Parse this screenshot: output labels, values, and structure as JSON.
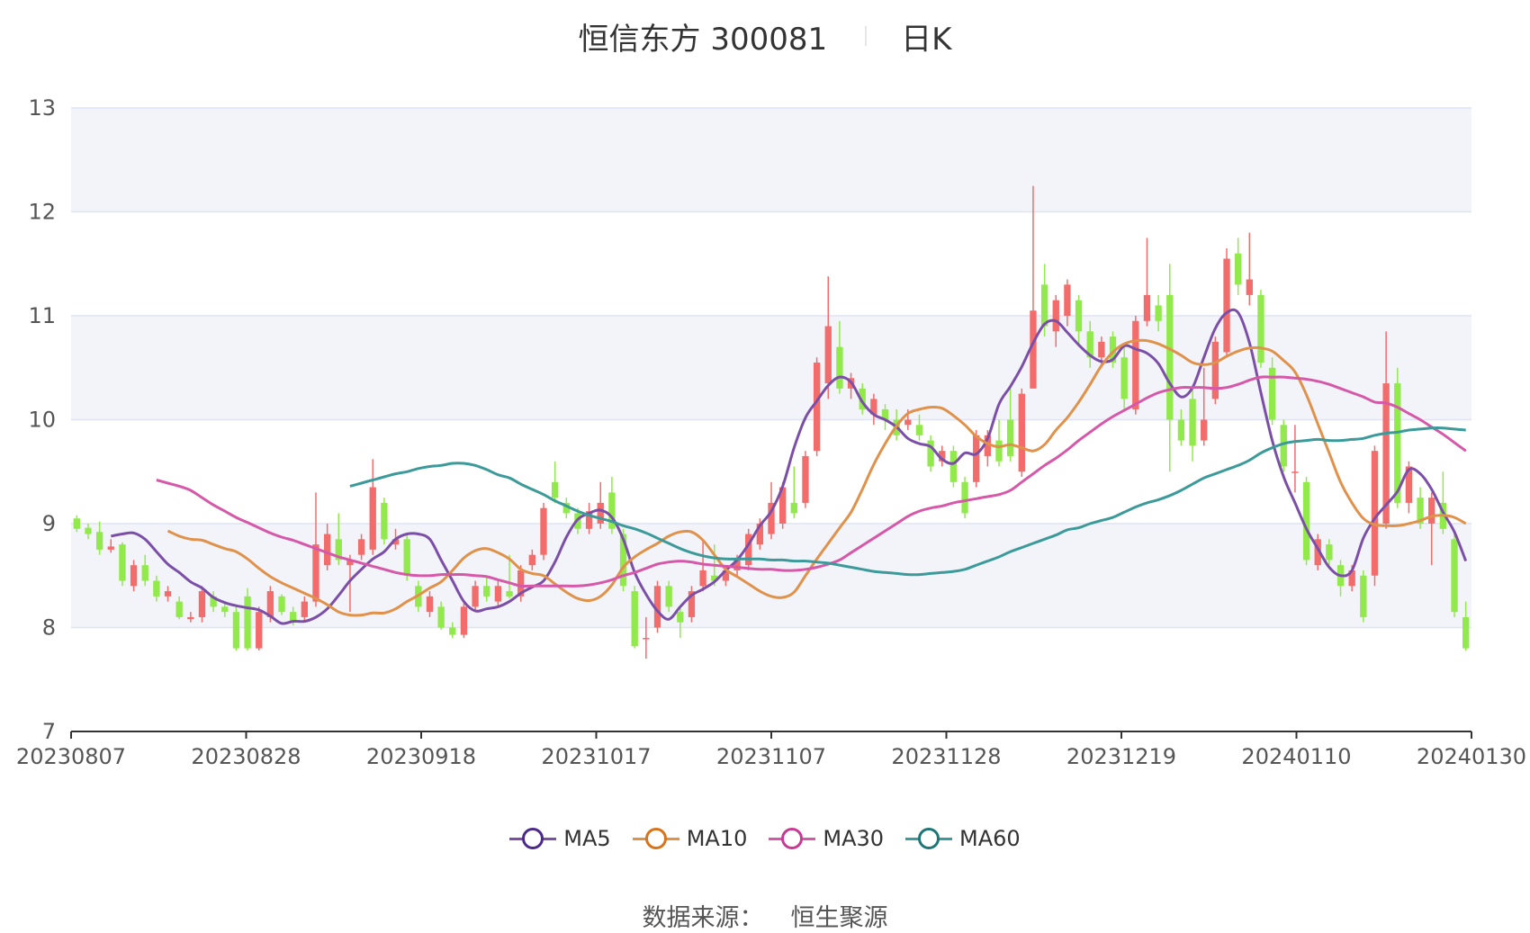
{
  "header": {
    "title": "恒信东方 300081",
    "period": "日K"
  },
  "source": {
    "label": "数据来源：",
    "value": "恒生聚源"
  },
  "chart_data": {
    "type": "candlestick",
    "title": "恒信东方 300081",
    "ylim": [
      7,
      13
    ],
    "yticks": [
      7,
      8,
      9,
      10,
      11,
      12,
      13
    ],
    "x_tick_labels": [
      "20230807",
      "20230828",
      "20230918",
      "20231017",
      "20231107",
      "20231128",
      "20231219",
      "20240110",
      "20240130"
    ],
    "grid": true,
    "legend_position": "bottom",
    "colors": {
      "up": "#f26c6c",
      "down": "#91e94c",
      "grid": "#dfe3f3",
      "band": "#f3f4fa"
    },
    "candles": [
      [
        9.05,
        8.95,
        9.08,
        8.92
      ],
      [
        8.96,
        8.9,
        9.0,
        8.85
      ],
      [
        8.92,
        8.75,
        9.02,
        8.7
      ],
      [
        8.75,
        8.78,
        8.85,
        8.72
      ],
      [
        8.8,
        8.45,
        8.82,
        8.4
      ],
      [
        8.4,
        8.6,
        8.65,
        8.35
      ],
      [
        8.6,
        8.45,
        8.7,
        8.4
      ],
      [
        8.45,
        8.3,
        8.5,
        8.25
      ],
      [
        8.3,
        8.35,
        8.4,
        8.25
      ],
      [
        8.25,
        8.1,
        8.3,
        8.08
      ],
      [
        8.08,
        8.1,
        8.15,
        8.05
      ],
      [
        8.1,
        8.35,
        8.4,
        8.05
      ],
      [
        8.3,
        8.2,
        8.35,
        8.15
      ],
      [
        8.2,
        8.15,
        8.25,
        8.1
      ],
      [
        8.15,
        7.8,
        8.2,
        7.78
      ],
      [
        8.3,
        7.8,
        8.38,
        7.78
      ],
      [
        7.8,
        8.15,
        8.2,
        7.78
      ],
      [
        8.1,
        8.35,
        8.4,
        8.05
      ],
      [
        8.3,
        8.15,
        8.32,
        8.12
      ],
      [
        8.15,
        8.05,
        8.2,
        8.02
      ],
      [
        8.1,
        8.25,
        8.3,
        8.05
      ],
      [
        8.25,
        8.8,
        9.3,
        8.2
      ],
      [
        8.6,
        8.9,
        9.0,
        8.55
      ],
      [
        8.85,
        8.65,
        9.1,
        8.6
      ],
      [
        8.6,
        8.65,
        8.7,
        8.15
      ],
      [
        8.7,
        8.85,
        8.9,
        8.65
      ],
      [
        8.75,
        9.35,
        9.62,
        8.7
      ],
      [
        9.2,
        8.85,
        9.25,
        8.8
      ],
      [
        8.8,
        8.85,
        8.95,
        8.75
      ],
      [
        8.85,
        8.5,
        8.9,
        8.45
      ],
      [
        8.4,
        8.2,
        8.45,
        8.15
      ],
      [
        8.15,
        8.3,
        8.35,
        8.1
      ],
      [
        8.2,
        8.0,
        8.25,
        7.98
      ],
      [
        8.0,
        7.93,
        8.05,
        7.9
      ],
      [
        7.93,
        8.2,
        8.25,
        7.9
      ],
      [
        8.2,
        8.4,
        8.45,
        8.15
      ],
      [
        8.4,
        8.3,
        8.5,
        8.25
      ],
      [
        8.25,
        8.4,
        8.45,
        8.2
      ],
      [
        8.35,
        8.3,
        8.7,
        8.28
      ],
      [
        8.3,
        8.55,
        8.6,
        8.25
      ],
      [
        8.6,
        8.7,
        8.75,
        8.55
      ],
      [
        8.7,
        9.15,
        9.2,
        8.65
      ],
      [
        9.4,
        9.25,
        9.6,
        9.2
      ],
      [
        9.2,
        9.1,
        9.25,
        9.05
      ],
      [
        9.1,
        8.95,
        9.15,
        8.9
      ],
      [
        8.95,
        9.12,
        9.2,
        8.9
      ],
      [
        9.0,
        9.2,
        9.4,
        8.95
      ],
      [
        9.3,
        8.95,
        9.45,
        8.9
      ],
      [
        8.9,
        8.4,
        8.95,
        8.35
      ],
      [
        8.35,
        7.82,
        8.4,
        7.8
      ],
      [
        7.9,
        7.9,
        8.1,
        7.7
      ],
      [
        8.0,
        8.4,
        8.45,
        7.95
      ],
      [
        8.4,
        8.2,
        8.45,
        8.15
      ],
      [
        8.15,
        8.05,
        8.2,
        7.9
      ],
      [
        8.1,
        8.35,
        8.4,
        8.05
      ],
      [
        8.4,
        8.55,
        8.85,
        8.35
      ],
      [
        8.5,
        8.45,
        8.8,
        8.4
      ],
      [
        8.45,
        8.55,
        8.6,
        8.4
      ],
      [
        8.55,
        8.65,
        8.7,
        8.5
      ],
      [
        8.6,
        8.9,
        8.95,
        8.55
      ],
      [
        8.8,
        9.0,
        9.05,
        8.75
      ],
      [
        8.9,
        9.2,
        9.4,
        8.85
      ],
      [
        9.0,
        9.35,
        9.4,
        8.95
      ],
      [
        9.2,
        9.1,
        9.55,
        9.05
      ],
      [
        9.2,
        9.65,
        9.7,
        9.15
      ],
      [
        9.7,
        10.55,
        10.6,
        9.65
      ],
      [
        10.35,
        10.9,
        11.38,
        10.2
      ],
      [
        10.7,
        10.3,
        10.95,
        10.25
      ],
      [
        10.3,
        10.4,
        10.45,
        10.2
      ],
      [
        10.3,
        10.1,
        10.35,
        10.05
      ],
      [
        10.05,
        10.2,
        10.25,
        9.95
      ],
      [
        10.1,
        10.0,
        10.15,
        9.9
      ],
      [
        10.0,
        9.85,
        10.1,
        9.8
      ],
      [
        9.95,
        10.0,
        10.1,
        9.9
      ],
      [
        9.95,
        9.85,
        10.05,
        9.8
      ],
      [
        9.8,
        9.55,
        9.85,
        9.5
      ],
      [
        9.6,
        9.7,
        9.75,
        9.55
      ],
      [
        9.7,
        9.4,
        9.75,
        9.35
      ],
      [
        9.4,
        9.1,
        9.45,
        9.05
      ],
      [
        9.4,
        9.85,
        9.9,
        9.35
      ],
      [
        9.65,
        9.85,
        9.9,
        9.55
      ],
      [
        9.8,
        9.6,
        10.0,
        9.55
      ],
      [
        10.0,
        9.65,
        10.3,
        9.6
      ],
      [
        9.5,
        10.25,
        10.3,
        9.45
      ],
      [
        10.3,
        11.05,
        12.25,
        10.3
      ],
      [
        11.3,
        10.9,
        11.5,
        10.8
      ],
      [
        10.85,
        11.15,
        11.2,
        10.7
      ],
      [
        11.0,
        11.3,
        11.35,
        10.9
      ],
      [
        11.15,
        10.85,
        11.2,
        10.7
      ],
      [
        10.85,
        10.6,
        10.95,
        10.5
      ],
      [
        10.6,
        10.75,
        10.8,
        10.5
      ],
      [
        10.8,
        10.55,
        10.85,
        10.5
      ],
      [
        10.6,
        10.2,
        10.7,
        10.1
      ],
      [
        10.1,
        10.95,
        11.0,
        10.05
      ],
      [
        10.95,
        11.2,
        11.75,
        10.9
      ],
      [
        11.1,
        10.95,
        11.2,
        10.85
      ],
      [
        11.2,
        10.0,
        11.5,
        9.5
      ],
      [
        10.0,
        9.8,
        10.1,
        9.75
      ],
      [
        10.2,
        9.75,
        10.3,
        9.6
      ],
      [
        9.8,
        10.0,
        10.5,
        9.75
      ],
      [
        10.2,
        10.75,
        10.8,
        10.15
      ],
      [
        10.65,
        11.55,
        11.65,
        10.6
      ],
      [
        11.6,
        11.3,
        11.75,
        11.2
      ],
      [
        11.2,
        11.35,
        11.8,
        11.1
      ],
      [
        11.2,
        10.55,
        11.25,
        10.5
      ],
      [
        10.5,
        10.0,
        10.6,
        9.95
      ],
      [
        9.95,
        9.55,
        10.0,
        9.5
      ],
      [
        9.5,
        9.5,
        9.95,
        9.3
      ],
      [
        9.4,
        8.65,
        9.45,
        8.6
      ],
      [
        8.6,
        8.85,
        8.9,
        8.55
      ],
      [
        8.8,
        8.65,
        8.85,
        8.6
      ],
      [
        8.6,
        8.4,
        8.65,
        8.3
      ],
      [
        8.4,
        8.55,
        8.6,
        8.35
      ],
      [
        8.5,
        8.1,
        8.55,
        8.05
      ],
      [
        8.5,
        9.7,
        9.75,
        8.4
      ],
      [
        9.0,
        10.35,
        10.85,
        8.95
      ],
      [
        10.35,
        9.2,
        10.5,
        9.15
      ],
      [
        9.2,
        9.55,
        9.6,
        9.1
      ],
      [
        9.25,
        9.0,
        9.35,
        8.95
      ],
      [
        9.0,
        9.25,
        9.3,
        8.6
      ],
      [
        9.2,
        8.95,
        9.5,
        8.9
      ],
      [
        8.85,
        8.15,
        8.9,
        8.1
      ],
      [
        8.1,
        7.8,
        8.25,
        7.78
      ]
    ],
    "series": [
      {
        "name": "MA5",
        "color": "#7b4fa8",
        "values": [
          8.88,
          8.9,
          8.91,
          8.85,
          8.73,
          8.61,
          8.53,
          8.44,
          8.38,
          8.29,
          8.24,
          8.21,
          8.19,
          8.17,
          8.11,
          8.04,
          8.06,
          8.06,
          8.1,
          8.18,
          8.31,
          8.45,
          8.56,
          8.66,
          8.73,
          8.85,
          8.9,
          8.9,
          8.85,
          8.65,
          8.45,
          8.25,
          8.16,
          8.18,
          8.2,
          8.25,
          8.33,
          8.39,
          8.45,
          8.63,
          8.87,
          9.04,
          9.1,
          9.13,
          9.06,
          8.85,
          8.53,
          8.32,
          8.16,
          8.08,
          8.2,
          8.31,
          8.37,
          8.44,
          8.55,
          8.65,
          8.8,
          8.98,
          9.12,
          9.36,
          9.73,
          10.02,
          10.18,
          10.33,
          10.41,
          10.36,
          10.17,
          10.05,
          10.0,
          9.93,
          9.82,
          9.77,
          9.74,
          9.62,
          9.58,
          9.68,
          9.67,
          9.82,
          10.15,
          10.32,
          10.51,
          10.74,
          10.92,
          10.95,
          10.84,
          10.72,
          10.62,
          10.56,
          10.58,
          10.71,
          10.68,
          10.64,
          10.54,
          10.35,
          10.22,
          10.31,
          10.6,
          10.88,
          11.03,
          11.03,
          10.74,
          10.26,
          9.8,
          9.45,
          9.2,
          8.95,
          8.76,
          8.58,
          8.5,
          8.55,
          8.86,
          9.05,
          9.18,
          9.31,
          9.52,
          9.48,
          9.33,
          9.11,
          8.92,
          8.64
        ]
      },
      {
        "name": "MA10",
        "color": "#e0914a",
        "values": [
          8.93,
          8.88,
          8.85,
          8.84,
          8.8,
          8.76,
          8.73,
          8.66,
          8.57,
          8.49,
          8.43,
          8.38,
          8.33,
          8.28,
          8.22,
          8.15,
          8.12,
          8.12,
          8.14,
          8.14,
          8.18,
          8.25,
          8.31,
          8.38,
          8.44,
          8.55,
          8.67,
          8.74,
          8.76,
          8.72,
          8.66,
          8.56,
          8.52,
          8.5,
          8.42,
          8.34,
          8.28,
          8.26,
          8.3,
          8.41,
          8.58,
          8.68,
          8.75,
          8.81,
          8.88,
          8.92,
          8.92,
          8.84,
          8.7,
          8.56,
          8.49,
          8.42,
          8.35,
          8.3,
          8.29,
          8.34,
          8.5,
          8.66,
          8.81,
          8.96,
          9.11,
          9.33,
          9.57,
          9.77,
          9.94,
          10.06,
          10.1,
          10.12,
          10.11,
          10.04,
          9.95,
          9.84,
          9.77,
          9.74,
          9.76,
          9.73,
          9.7,
          9.76,
          9.9,
          10.02,
          10.17,
          10.34,
          10.52,
          10.65,
          10.73,
          10.76,
          10.76,
          10.73,
          10.68,
          10.62,
          10.55,
          10.53,
          10.55,
          10.61,
          10.66,
          10.69,
          10.69,
          10.66,
          10.57,
          10.46,
          10.24,
          9.96,
          9.68,
          9.4,
          9.2,
          9.05,
          8.99,
          8.98,
          8.98,
          9.0,
          9.03,
          9.07,
          9.08,
          9.06,
          9.0
        ]
      },
      {
        "name": "MA30",
        "color": "#d658a8",
        "values": [
          9.42,
          9.39,
          9.36,
          9.32,
          9.25,
          9.18,
          9.12,
          9.06,
          9.01,
          8.96,
          8.91,
          8.87,
          8.84,
          8.8,
          8.76,
          8.72,
          8.68,
          8.65,
          8.62,
          8.59,
          8.56,
          8.53,
          8.51,
          8.5,
          8.5,
          8.51,
          8.51,
          8.51,
          8.5,
          8.49,
          8.46,
          8.43,
          8.4,
          8.4,
          8.4,
          8.4,
          8.4,
          8.4,
          8.41,
          8.43,
          8.46,
          8.5,
          8.53,
          8.57,
          8.61,
          8.63,
          8.64,
          8.63,
          8.61,
          8.6,
          8.59,
          8.58,
          8.57,
          8.56,
          8.56,
          8.55,
          8.55,
          8.56,
          8.58,
          8.61,
          8.65,
          8.72,
          8.79,
          8.86,
          8.93,
          9.0,
          9.07,
          9.12,
          9.15,
          9.17,
          9.2,
          9.22,
          9.24,
          9.26,
          9.28,
          9.32,
          9.4,
          9.48,
          9.56,
          9.63,
          9.71,
          9.8,
          9.88,
          9.96,
          10.03,
          10.09,
          10.15,
          10.21,
          10.26,
          10.29,
          10.31,
          10.31,
          10.31,
          10.3,
          10.31,
          10.34,
          10.38,
          10.41,
          10.41,
          10.41,
          10.4,
          10.39,
          10.37,
          10.34,
          10.3,
          10.26,
          10.22,
          10.17,
          10.16,
          10.12,
          10.06,
          10.0,
          9.93,
          9.86,
          9.78,
          9.7
        ]
      },
      {
        "name": "MA60",
        "color": "#3d9a9a",
        "values": [
          9.36,
          9.39,
          9.42,
          9.45,
          9.48,
          9.5,
          9.53,
          9.55,
          9.56,
          9.58,
          9.58,
          9.56,
          9.52,
          9.47,
          9.44,
          9.38,
          9.33,
          9.28,
          9.22,
          9.17,
          9.12,
          9.08,
          9.05,
          9.02,
          8.98,
          8.95,
          8.91,
          8.86,
          8.81,
          8.76,
          8.72,
          8.69,
          8.67,
          8.66,
          8.66,
          8.66,
          8.66,
          8.65,
          8.65,
          8.64,
          8.64,
          8.63,
          8.62,
          8.6,
          8.58,
          8.56,
          8.54,
          8.53,
          8.52,
          8.51,
          8.51,
          8.52,
          8.53,
          8.54,
          8.56,
          8.6,
          8.64,
          8.68,
          8.73,
          8.77,
          8.81,
          8.85,
          8.89,
          8.94,
          8.96,
          9.0,
          9.03,
          9.06,
          9.11,
          9.16,
          9.2,
          9.23,
          9.27,
          9.32,
          9.38,
          9.44,
          9.48,
          9.52,
          9.56,
          9.61,
          9.68,
          9.73,
          9.77,
          9.79,
          9.8,
          9.81,
          9.8,
          9.8,
          9.81,
          9.82,
          9.85,
          9.87,
          9.88,
          9.9,
          9.91,
          9.92,
          9.92,
          9.91,
          9.9
        ]
      }
    ]
  }
}
